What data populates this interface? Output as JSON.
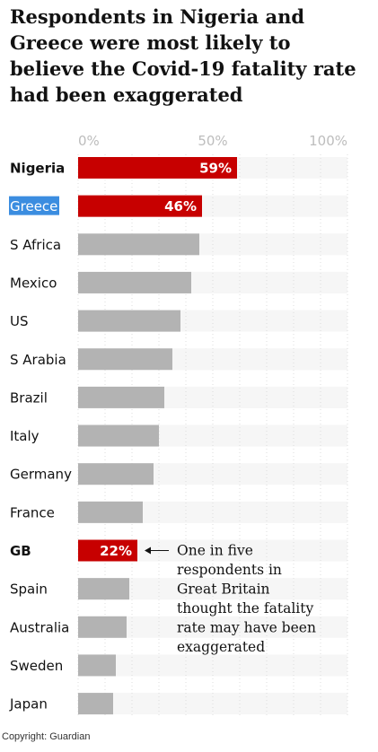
{
  "title": "Respondents in Nigeria and Greece were most likely to believe the Covid-19 fatality rate had been exaggerated",
  "copyright": "Copyright: Guardian",
  "chart_data": {
    "type": "bar",
    "orientation": "horizontal",
    "title": "Respondents in Nigeria and Greece were most likely to believe the Covid-19 fatality rate had been exaggerated",
    "xlim": [
      0,
      100
    ],
    "ticks": [
      "0%",
      "50%",
      "100%"
    ],
    "tick_values": [
      0,
      50,
      100
    ],
    "grid": true,
    "categories": [
      "Nigeria",
      "Greece",
      "S Africa",
      "Mexico",
      "US",
      "S Arabia",
      "Brazil",
      "Italy",
      "Germany",
      "France",
      "GB",
      "Spain",
      "Australia",
      "Sweden",
      "Japan"
    ],
    "values": [
      59,
      46,
      45,
      42,
      38,
      35,
      32,
      30,
      28,
      24,
      22,
      19,
      18,
      14,
      13
    ],
    "highlighted": [
      {
        "category": "Nigeria",
        "label": "59%",
        "color": "#c70000"
      },
      {
        "category": "Greece",
        "label": "46%",
        "color": "#c70000"
      },
      {
        "category": "GB",
        "label": "22%",
        "color": "#c70000"
      }
    ],
    "colors": {
      "default_bar": "#b3b3b3",
      "highlight_bar": "#c70000",
      "track": "#f6f6f6",
      "selection": "#3b8de0"
    },
    "annotation": {
      "target": "GB",
      "lines": [
        "One in five",
        "respondents in",
        "Great Britain",
        "thought the fatality",
        "rate may have been",
        "exaggerated"
      ]
    }
  }
}
